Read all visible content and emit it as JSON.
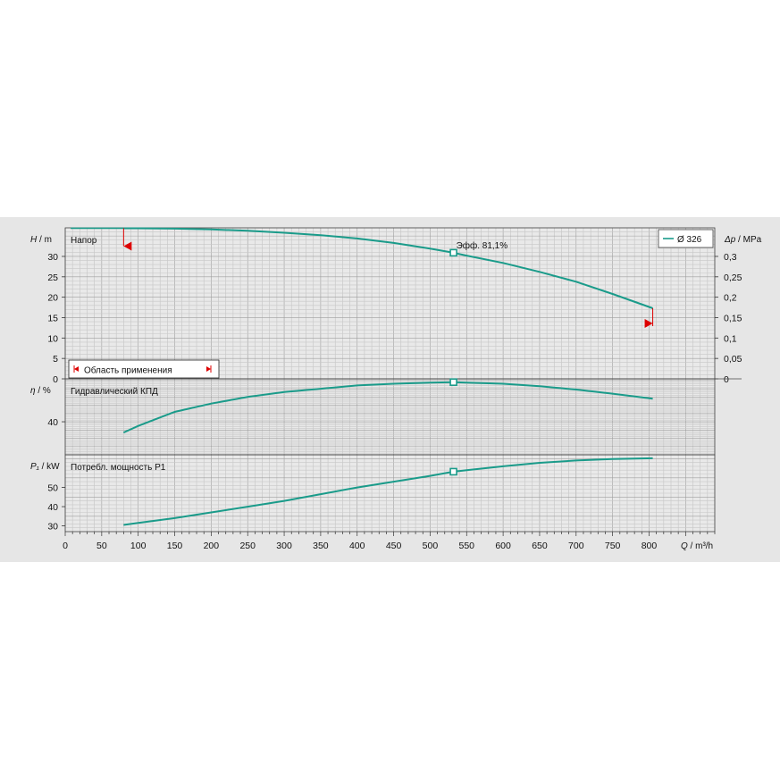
{
  "colors": {
    "curve": "#1a9b8a",
    "operating_range": "#dd0000",
    "panel": "#e6e6e6",
    "grid": "#a9a9a9"
  },
  "chart_data": {
    "type": "line",
    "grid": true,
    "legend_position": "top-right",
    "legend_label": "Ø 326",
    "x_axis": {
      "label": "Q / m³/h",
      "label_var": "Q",
      "label_unit": "/ m³/h",
      "range": [
        0,
        890
      ],
      "ticks": [
        "0",
        "50",
        "100",
        "150",
        "200",
        "250",
        "300",
        "350",
        "400",
        "450",
        "500",
        "550",
        "600",
        "650",
        "700",
        "750",
        "800"
      ]
    },
    "panels": [
      {
        "id": "head",
        "title": "Напор",
        "y_label_var": "H",
        "y_label_unit": "/ m",
        "y_range": [
          0,
          37
        ],
        "y_ticks": [
          "0",
          "5",
          "10",
          "15",
          "20",
          "25",
          "30"
        ],
        "y2_label_var": "Δp",
        "y2_label_unit": "/ MPa",
        "y2_ticks": [
          "0",
          "0,05",
          "0,1",
          "0,15",
          "0,2",
          "0,25",
          "0,3"
        ],
        "series": {
          "x": [
            80,
            100,
            150,
            200,
            250,
            300,
            350,
            400,
            450,
            500,
            532,
            550,
            600,
            650,
            700,
            750,
            805
          ],
          "y": [
            36.9,
            36.9,
            36.8,
            36.6,
            36.3,
            35.8,
            35.2,
            34.4,
            33.3,
            31.9,
            30.9,
            30.2,
            28.4,
            26.2,
            23.8,
            20.8,
            17.3
          ]
        },
        "operating_point": {
          "x": 532,
          "y": 30.9,
          "label": "Эфф.  81,1%"
        },
        "operating_range": {
          "min": 80,
          "max": 805,
          "label": "Область применения"
        }
      },
      {
        "id": "efficiency",
        "title": "Гидравлический КПД",
        "y_label_var": "η",
        "y_label_unit": "/ %",
        "y_range": [
          0,
          92
        ],
        "y_ticks": [
          "40"
        ],
        "series": {
          "x": [
            80,
            100,
            150,
            200,
            250,
            300,
            350,
            400,
            450,
            500,
            532,
            550,
            600,
            650,
            700,
            750,
            805
          ],
          "y": [
            27,
            35,
            52,
            62,
            70,
            76,
            80,
            84,
            86,
            87.5,
            88,
            87.5,
            86,
            83,
            79,
            74,
            68
          ]
        },
        "operating_point": {
          "x": 532,
          "y": 88
        }
      },
      {
        "id": "power",
        "title": "Потребл. мощность P1",
        "y_label_var": "P₁",
        "y_label_unit": "/ kW",
        "y_range": [
          27,
          67
        ],
        "y_ticks": [
          "30",
          "40",
          "50"
        ],
        "series": {
          "x": [
            80,
            100,
            150,
            200,
            250,
            300,
            350,
            400,
            450,
            500,
            532,
            550,
            600,
            650,
            700,
            750,
            805
          ],
          "y": [
            30.5,
            31.5,
            34,
            37,
            40,
            43,
            46.5,
            50,
            53,
            56,
            58.2,
            59,
            61,
            62.8,
            64,
            64.8,
            65.2
          ]
        },
        "operating_point": {
          "x": 532,
          "y": 58.2
        }
      }
    ]
  }
}
